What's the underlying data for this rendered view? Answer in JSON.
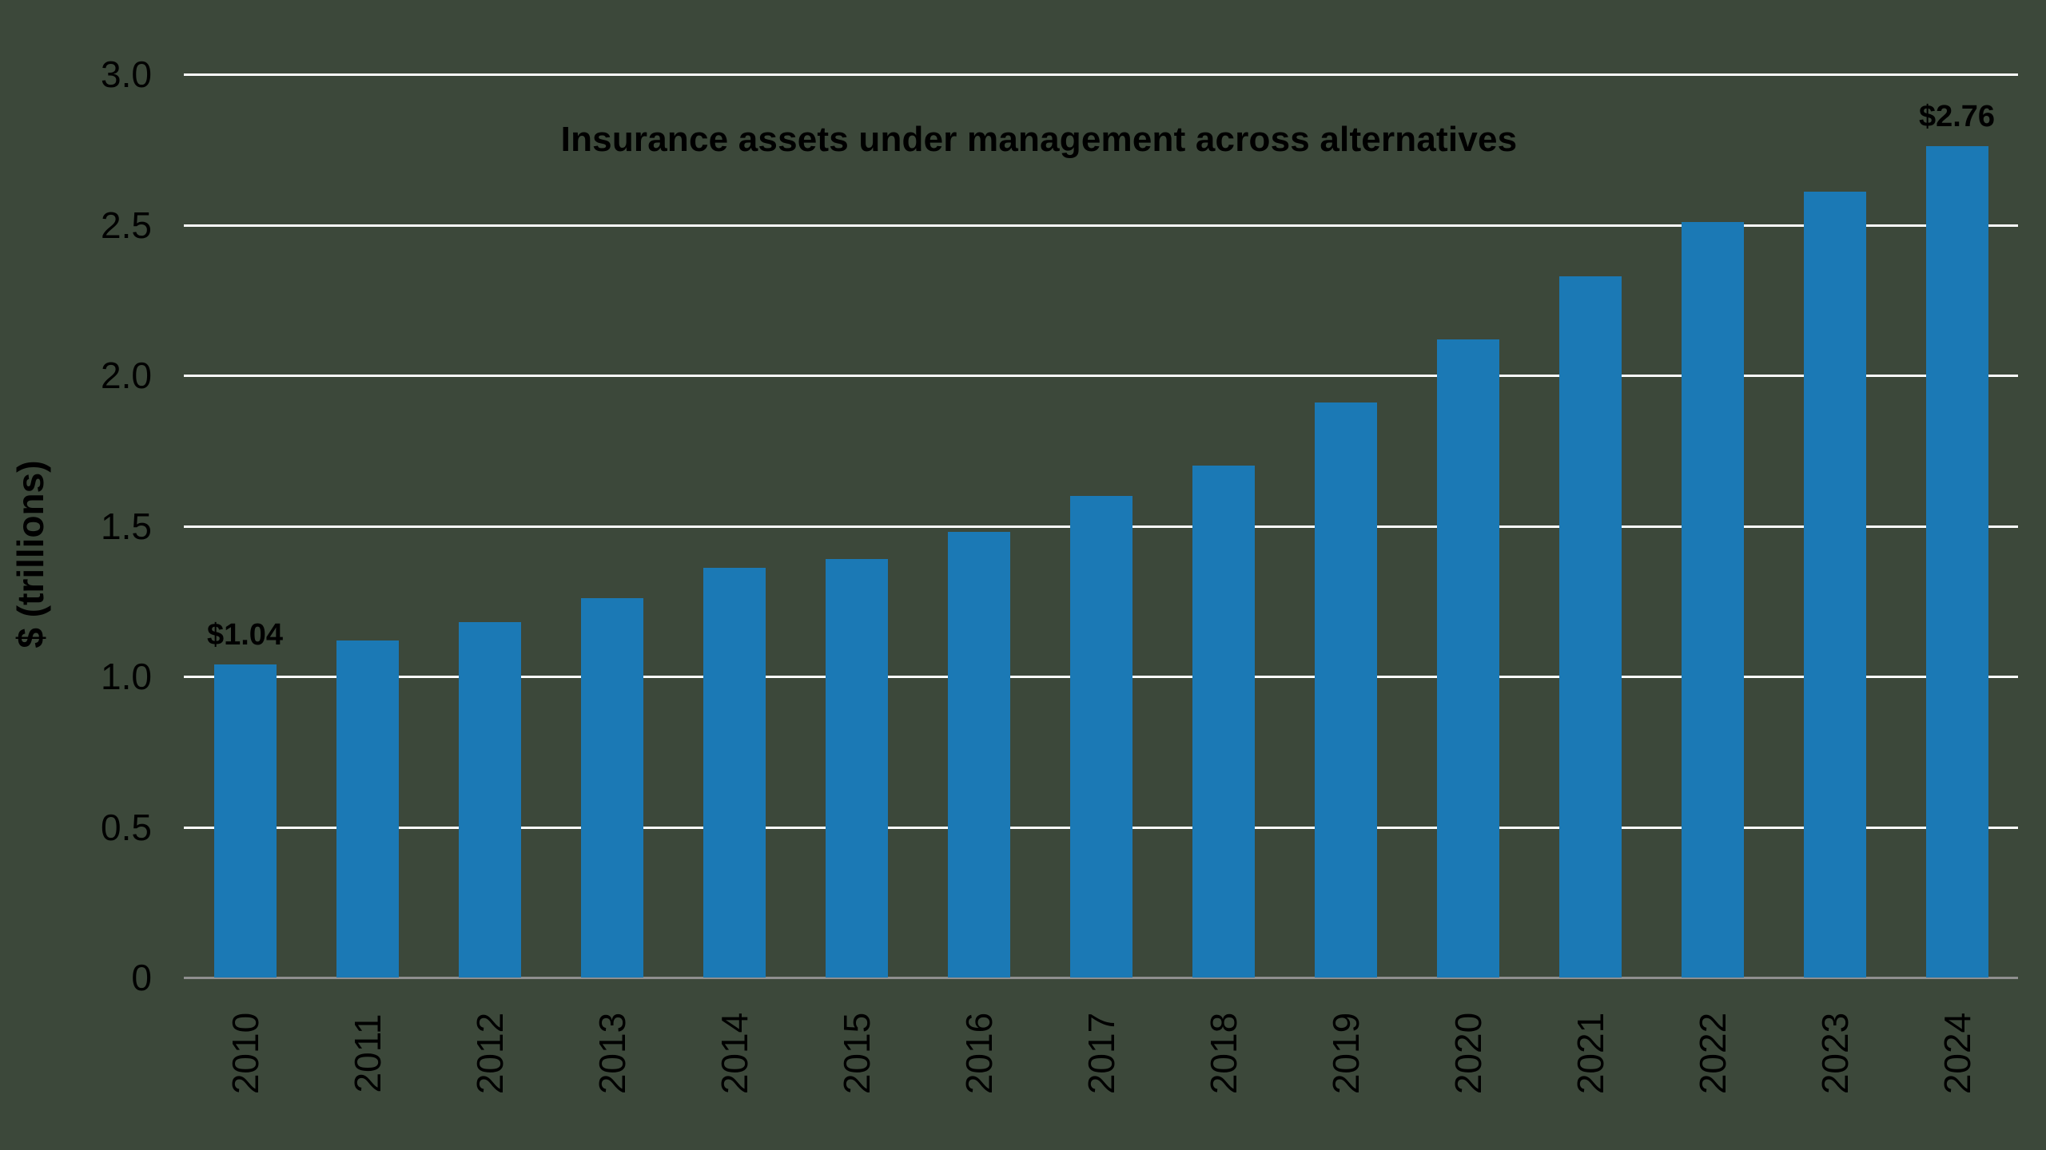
{
  "chart_data": {
    "type": "bar",
    "title": "Insurance assets under management across alternatives",
    "xlabel": "",
    "ylabel": "$ (trillions)",
    "categories": [
      "2010",
      "2011",
      "2012",
      "2013",
      "2014",
      "2015",
      "2016",
      "2017",
      "2018",
      "2019",
      "2020",
      "2021",
      "2022",
      "2023",
      "2024"
    ],
    "values": [
      1.04,
      1.12,
      1.18,
      1.26,
      1.36,
      1.39,
      1.48,
      1.6,
      1.7,
      1.91,
      2.12,
      2.33,
      2.51,
      2.61,
      2.76
    ],
    "ylim": [
      0,
      3.0
    ],
    "ytick_step": 0.5,
    "ytick_labels": [
      "0",
      "0.5",
      "1.0",
      "1.5",
      "2.0",
      "2.5",
      "3.0"
    ],
    "grid": "horizontal",
    "legend": "none",
    "annotations": [
      {
        "category": "2010",
        "text": "$1.04"
      },
      {
        "category": "2024",
        "text": "$2.76"
      }
    ],
    "colors": {
      "bar": "#1b79b5",
      "background": "#3c483a",
      "gridline": "#ffffff",
      "axis_line": "#8f8f8f",
      "text": "#000000"
    }
  }
}
